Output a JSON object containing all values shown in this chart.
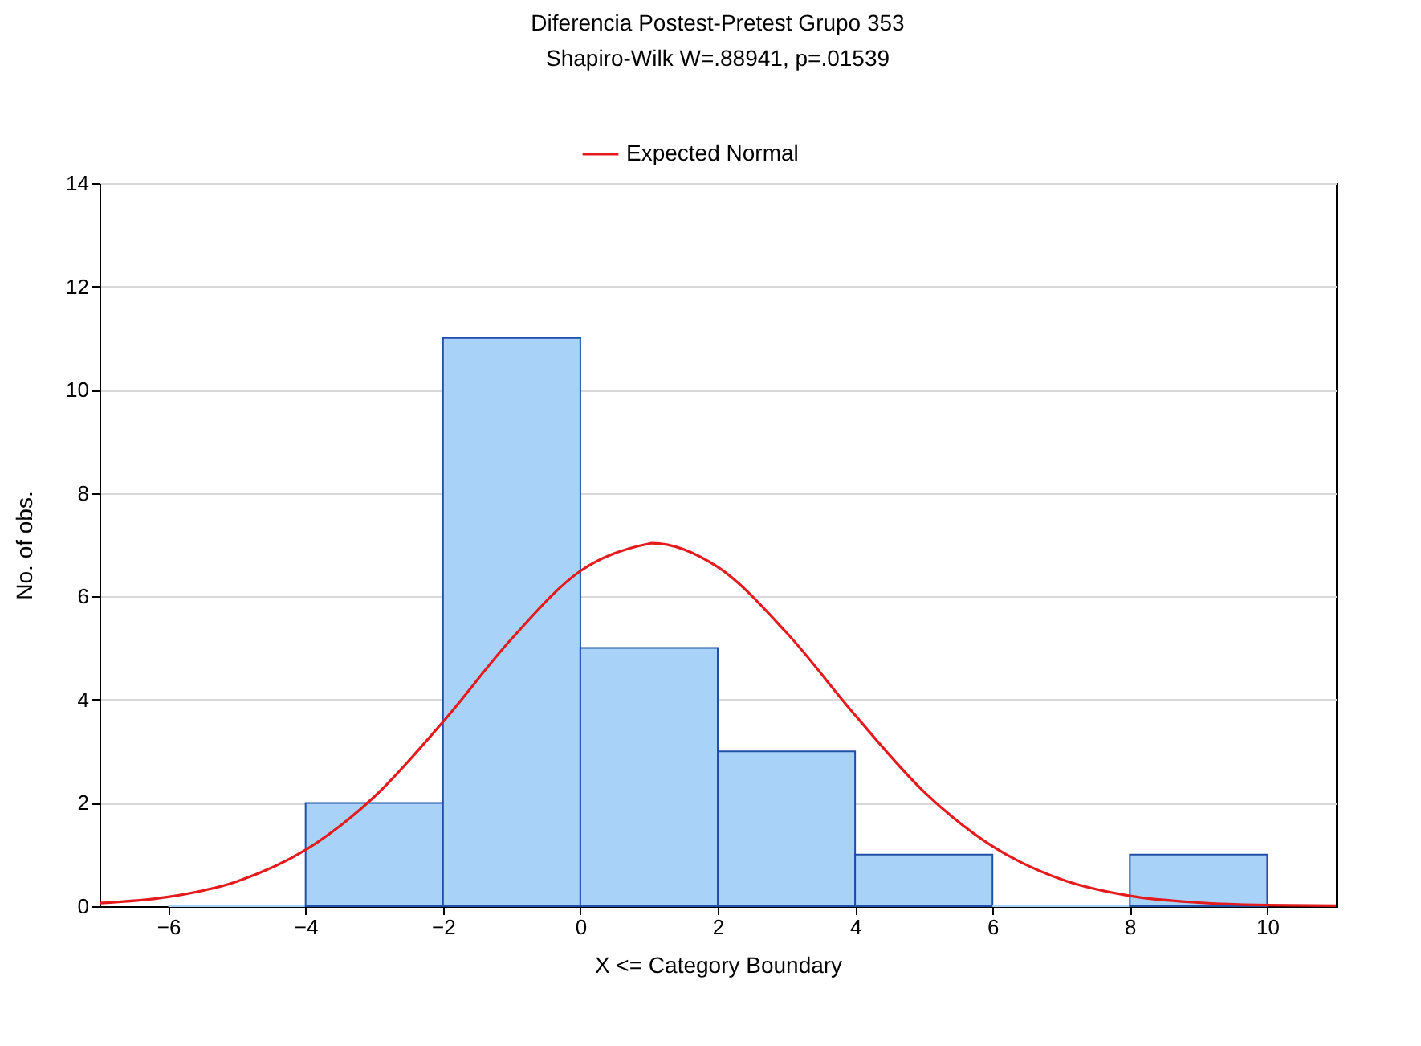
{
  "chart_data": {
    "type": "histogram",
    "title": "Diferencia Postest-Pretest Grupo 353",
    "subtitle": "Shapiro-Wilk W=.88941, p=.01539",
    "xlabel": "X <= Category Boundary",
    "ylabel": "No. of obs.",
    "bins": [
      -6,
      -4,
      -2,
      0,
      2,
      4,
      6,
      8,
      10
    ],
    "values": [
      0,
      2,
      11,
      5,
      3,
      1,
      0,
      1
    ],
    "color": "#a8d2f8",
    "series": [
      {
        "name": "Expected Normal",
        "type": "line",
        "color": "#e41a1c",
        "x": [
          -7,
          -6,
          -5,
          -4,
          -3,
          -2,
          -1,
          0,
          1,
          1.04,
          2,
          3,
          4,
          5,
          6,
          7,
          8,
          9,
          10,
          11
        ],
        "values": [
          0.06,
          0.18,
          0.48,
          1.09,
          2.12,
          3.57,
          5.18,
          6.49,
          7.02,
          7.03,
          6.57,
          5.3,
          3.7,
          2.22,
          1.16,
          0.52,
          0.2,
          0.07,
          0.02,
          0.01
        ]
      }
    ],
    "xlim": [
      -7,
      11
    ],
    "xticks": [
      -6,
      -4,
      -2,
      0,
      2,
      4,
      6,
      8,
      10
    ],
    "ylim": [
      0,
      14
    ],
    "yticks": [
      0,
      2,
      4,
      6,
      8,
      10,
      12,
      14
    ],
    "grid": "y",
    "legend": "top"
  }
}
